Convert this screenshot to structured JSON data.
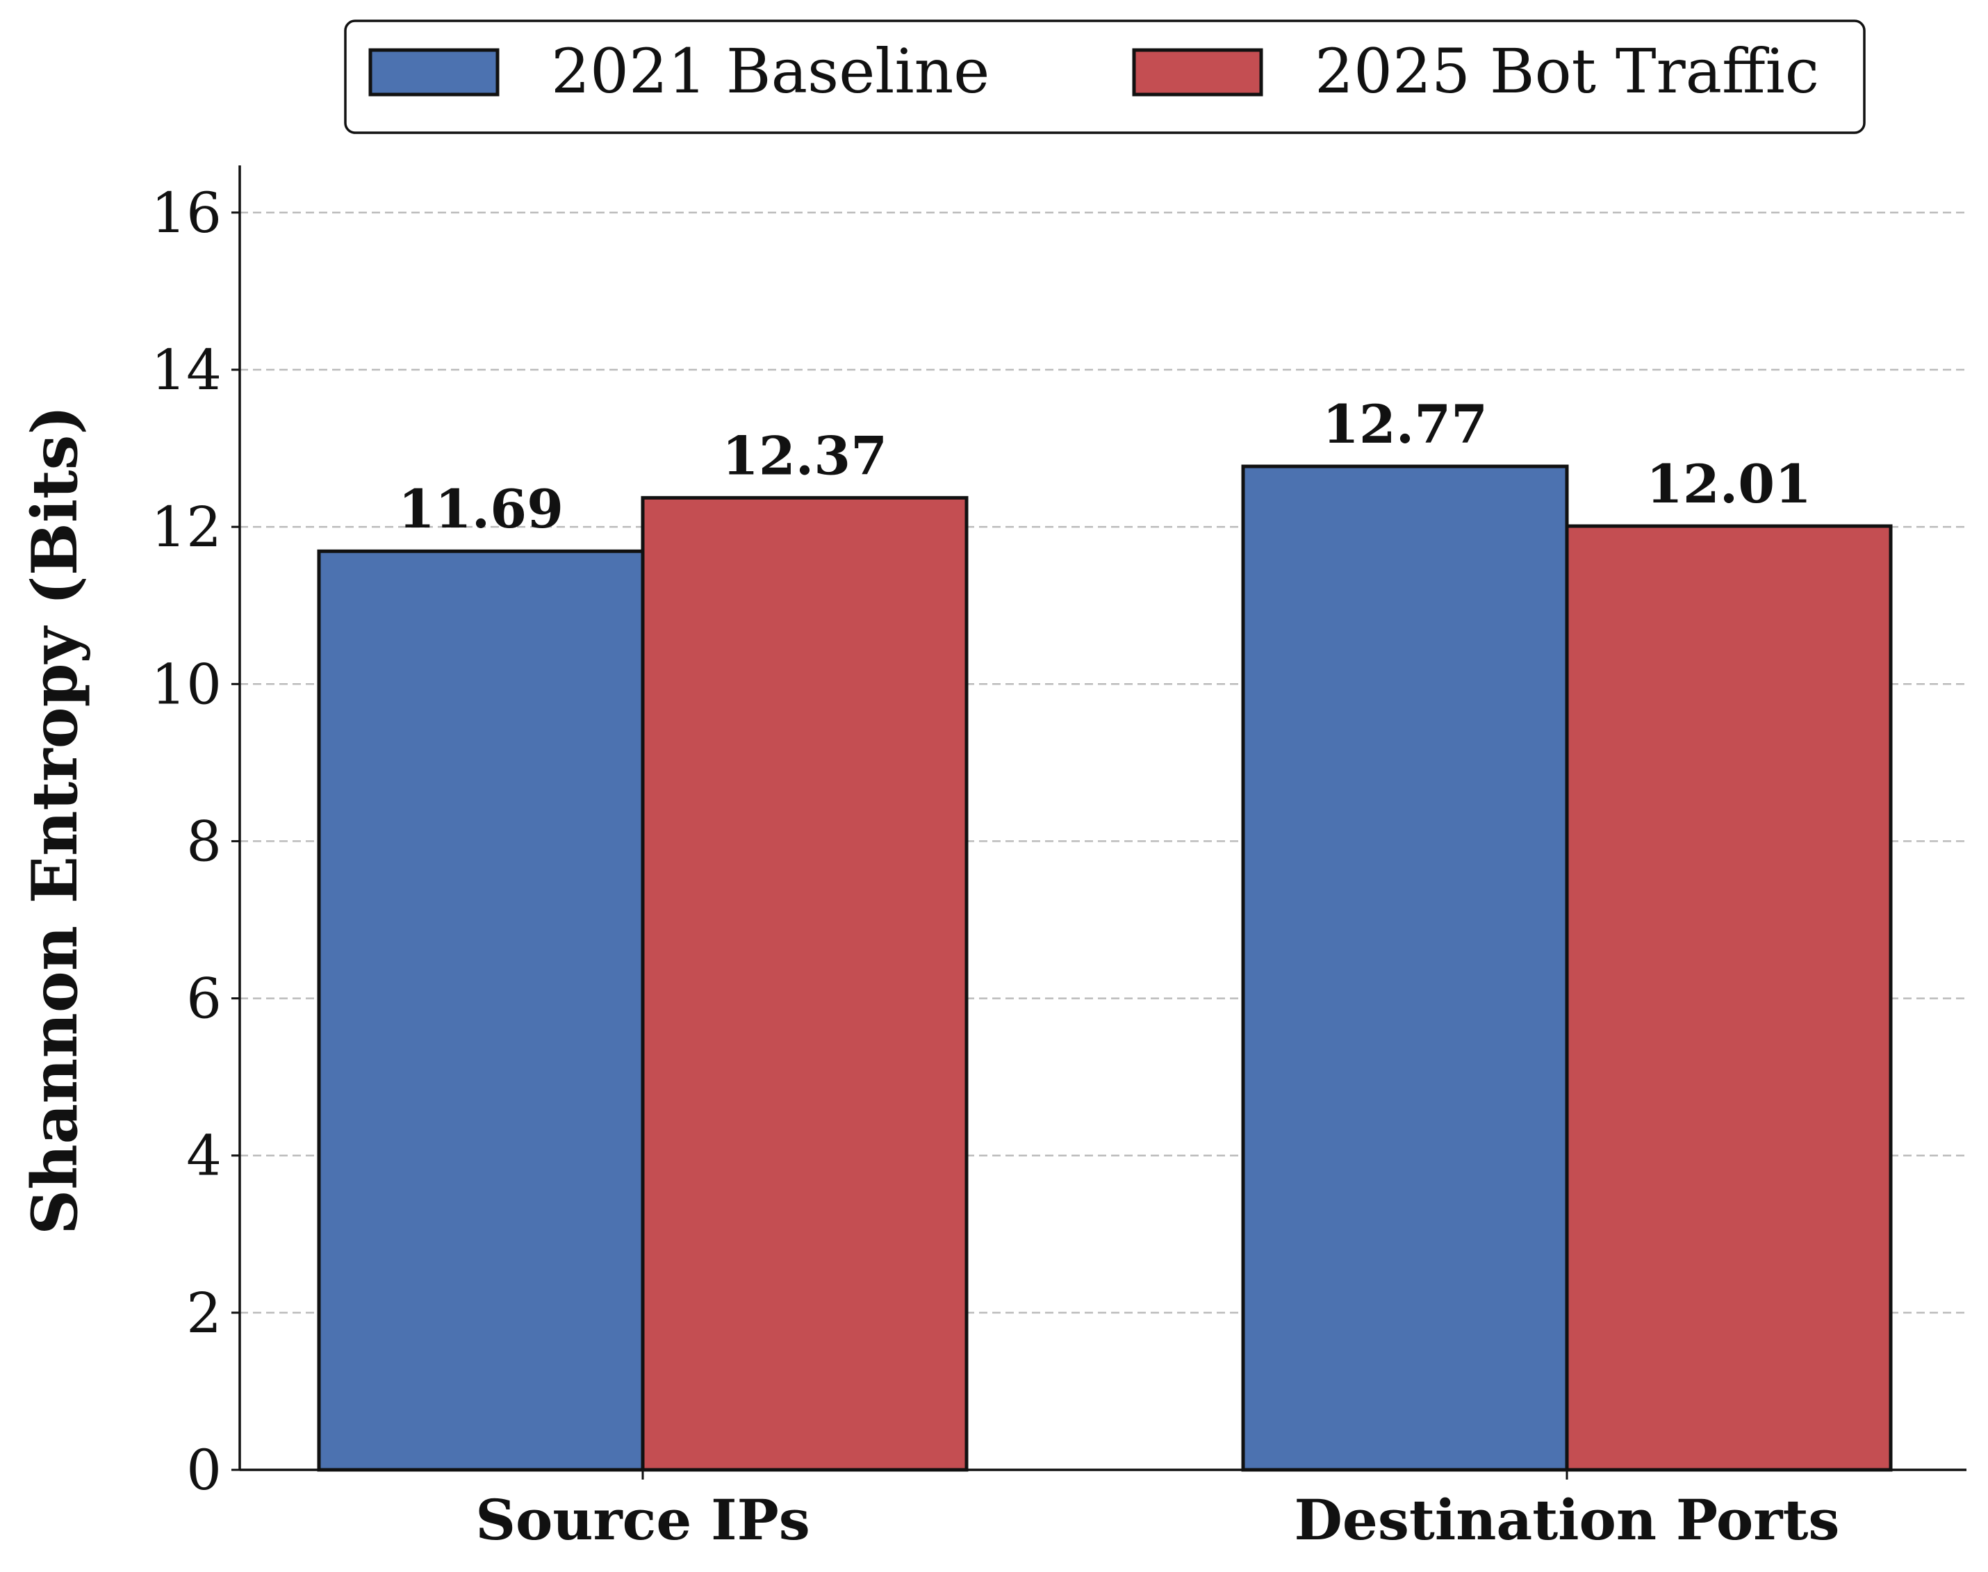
{
  "chart_data": {
    "type": "bar",
    "categories": [
      "Source IPs",
      "Destination Ports"
    ],
    "series": [
      {
        "name": "2021 Baseline",
        "values": [
          11.69,
          12.77
        ],
        "color": "#4c72b0"
      },
      {
        "name": "2025 Bot Traffic",
        "values": [
          12.37,
          12.01
        ],
        "color": "#c44e52"
      }
    ],
    "xlabel": "",
    "ylabel": "Shannon Entropy (Bits)",
    "ylim": [
      0,
      16.6
    ],
    "yticks": [
      0,
      2,
      4,
      6,
      8,
      10,
      12,
      14,
      16
    ],
    "grid": "y-dashed",
    "legend": "top-center",
    "data_labels": [
      "11.69",
      "12.37",
      "12.77",
      "12.01"
    ]
  }
}
